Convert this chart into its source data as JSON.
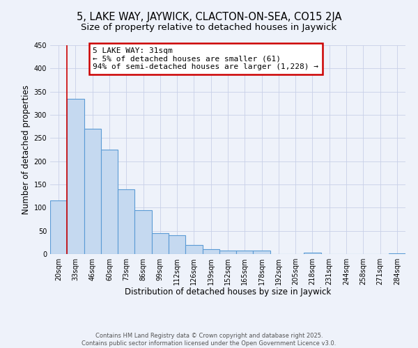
{
  "title": "5, LAKE WAY, JAYWICK, CLACTON-ON-SEA, CO15 2JA",
  "subtitle": "Size of property relative to detached houses in Jaywick",
  "xlabel": "Distribution of detached houses by size in Jaywick",
  "ylabel": "Number of detached properties",
  "bar_color": "#c5d9f0",
  "bar_edge_color": "#5b9bd5",
  "grid_color": "#c8d0e8",
  "background_color": "#eef2fa",
  "annotation_text": "5 LAKE WAY: 31sqm\n← 5% of detached houses are smaller (61)\n94% of semi-detached houses are larger (1,228) →",
  "annotation_box_color": "#ffffff",
  "annotation_border_color": "#cc0000",
  "vline_color": "#cc0000",
  "vline_x_bin": 1,
  "categories": [
    "20sqm",
    "33sqm",
    "46sqm",
    "60sqm",
    "73sqm",
    "86sqm",
    "99sqm",
    "112sqm",
    "126sqm",
    "139sqm",
    "152sqm",
    "165sqm",
    "178sqm",
    "192sqm",
    "205sqm",
    "218sqm",
    "231sqm",
    "244sqm",
    "258sqm",
    "271sqm",
    "284sqm"
  ],
  "values": [
    115,
    335,
    270,
    225,
    140,
    95,
    45,
    40,
    20,
    10,
    8,
    7,
    7,
    0,
    0,
    3,
    0,
    0,
    0,
    0,
    2
  ],
  "ylim": [
    0,
    450
  ],
  "yticks": [
    0,
    50,
    100,
    150,
    200,
    250,
    300,
    350,
    400,
    450
  ],
  "footer_text": "Contains HM Land Registry data © Crown copyright and database right 2025.\nContains public sector information licensed under the Open Government Licence v3.0.",
  "title_fontsize": 10.5,
  "subtitle_fontsize": 9.5,
  "axis_label_fontsize": 8.5,
  "tick_fontsize": 7,
  "annotation_fontsize": 8,
  "footer_fontsize": 6
}
